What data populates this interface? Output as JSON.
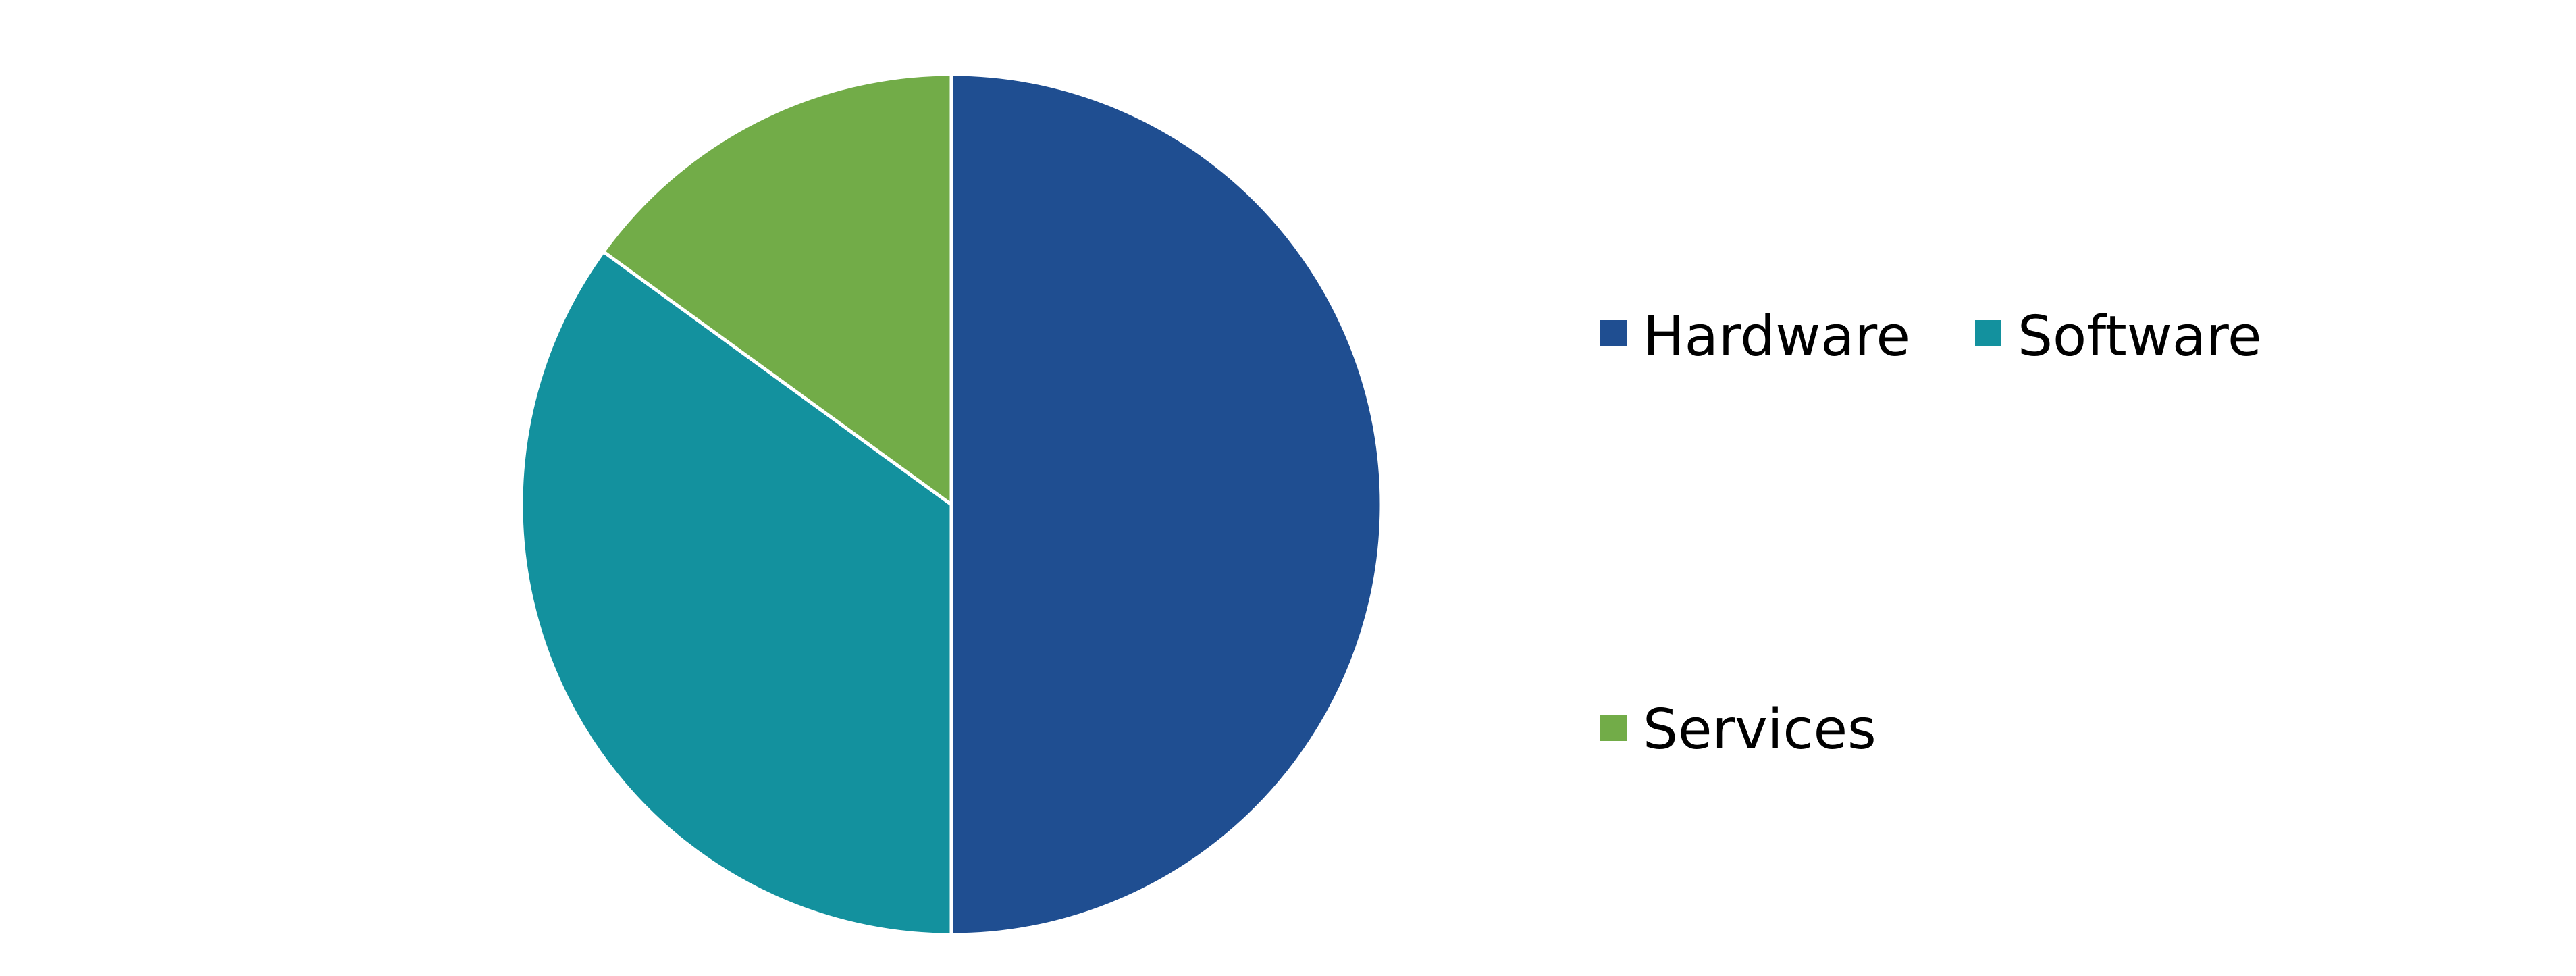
{
  "chart_data": {
    "type": "pie",
    "title": "",
    "categories": [
      "Hardware",
      "Software",
      "Services"
    ],
    "values": [
      50,
      35,
      15
    ],
    "colors": [
      "#1f4e91",
      "#13919e",
      "#72ac48"
    ],
    "start_angle": "12 o'clock",
    "direction": "clockwise",
    "legend": {
      "placement": "right",
      "entries": [
        "Hardware",
        "Software",
        "Services"
      ]
    }
  }
}
